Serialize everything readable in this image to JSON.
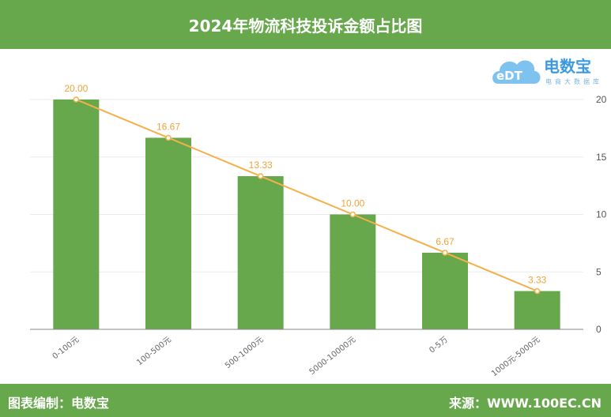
{
  "header": {
    "title": "2024年物流科技投诉金额占比图"
  },
  "logo": {
    "mark": "eDT",
    "name": "电数宝",
    "tagline": "电商大数据库"
  },
  "footer": {
    "left": "图表编制：电数宝",
    "right": "来源：WWW.100EC.CN"
  },
  "colors": {
    "bar": "#67a84c",
    "line": "#f5b04a",
    "label": "#f0a33a",
    "header": "#67a84c"
  },
  "chart_data": {
    "type": "bar",
    "title": "2024年物流科技投诉金额占比图",
    "categories": [
      "0-100元",
      "100-500元",
      "500-1000元",
      "5000-10000元",
      "0-5万",
      "1000元-5000元"
    ],
    "series": [
      {
        "type": "bar",
        "values": [
          20.0,
          16.67,
          13.33,
          10.0,
          6.67,
          3.33
        ]
      },
      {
        "type": "line",
        "values": [
          20.0,
          16.67,
          13.33,
          10.0,
          6.67,
          3.33
        ]
      }
    ],
    "data_labels": [
      "20.00",
      "16.67",
      "13.33",
      "10.00",
      "6.67",
      "3.33"
    ],
    "yticks": [
      "0",
      "5",
      "10",
      "15",
      "20"
    ],
    "ylim": [
      0,
      20
    ],
    "y_axis_side": "right",
    "grid": true,
    "legend": "none"
  }
}
